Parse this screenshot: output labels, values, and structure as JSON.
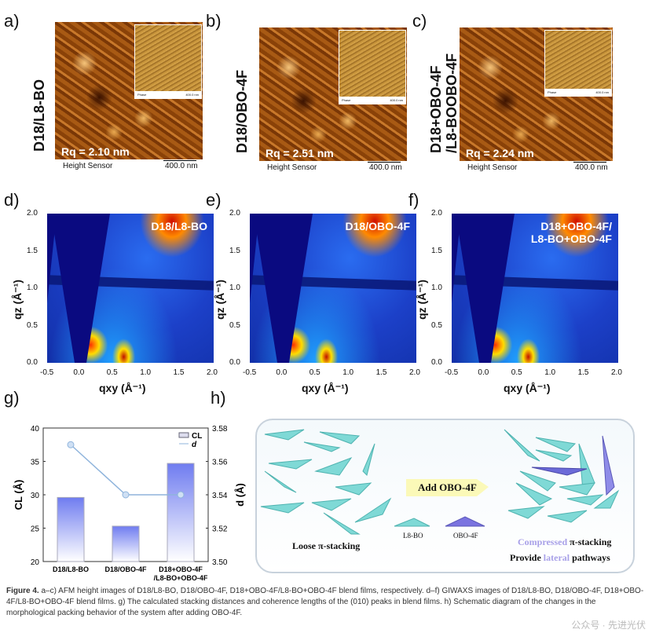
{
  "panels_afm": [
    {
      "letter": "a)",
      "sample": "D18/L8-BO",
      "rq": "Rq = 2.10 nm",
      "inset_label": "Phase",
      "inset_scale": "400.0 nm",
      "sensor": "Height Sensor",
      "scale": "400.0 nm"
    },
    {
      "letter": "b)",
      "sample": "D18/OBO-4F",
      "rq": "Rq = 2.51 nm",
      "inset_label": "Phase",
      "inset_scale": "400.0 nm",
      "sensor": "Height Sensor",
      "scale": "400.0 nm"
    },
    {
      "letter": "c)",
      "sample": "D18+OBO-4F",
      "sample2": "/L8-BOOBO-4F",
      "rq": "Rq = 2.24 nm",
      "inset_label": "Phase",
      "inset_scale": "400.0 nm",
      "sensor": "Height Sensor",
      "scale": "400.0 nm"
    }
  ],
  "panels_giwaxs": [
    {
      "letter": "d)",
      "sample": "D18/L8-BO"
    },
    {
      "letter": "e)",
      "sample": "D18/OBO-4F"
    },
    {
      "letter": "f)",
      "sample": "D18+OBO-4F/",
      "sample2": "L8-BO+OBO-4F"
    }
  ],
  "giwaxs_axes": {
    "xticks": [
      "-0.5",
      "0.0",
      "0.5",
      "1.0",
      "1.5",
      "2.0"
    ],
    "yticks": [
      "0.0",
      "0.5",
      "1.0",
      "1.5",
      "2.0"
    ],
    "xlabel": "qxy (Å⁻¹)",
    "ylabel": "qz (Å⁻¹)"
  },
  "chart_data": {
    "type": "bar",
    "letter": "g)",
    "categories": [
      "D18/L8-BO",
      "D18/OBO-4F",
      "D18+OBO-4F"
    ],
    "category_line2": [
      "",
      "",
      "/L8-BO+OBO-4F"
    ],
    "series": [
      {
        "name": "CL",
        "type": "bar",
        "axis": "left",
        "values": [
          29.6,
          25.3,
          34.7
        ]
      },
      {
        "name": "d",
        "type": "line",
        "axis": "right",
        "values": [
          3.57,
          3.54,
          3.54
        ]
      }
    ],
    "ylabel": "CL (Å)",
    "ylim": [
      20,
      40
    ],
    "yticks": [
      "20",
      "25",
      "30",
      "35",
      "40"
    ],
    "y2label": "d (Å)",
    "y2lim": [
      3.5,
      3.58
    ],
    "y2ticks": [
      "3.50",
      "3.52",
      "3.54",
      "3.56",
      "3.58"
    ],
    "legend": "top-right",
    "colors": {
      "bar": "#6f7cf0",
      "line": "#8fb4dc"
    }
  },
  "schematic": {
    "letter": "h)",
    "arrow": "Add OBO-4F",
    "left_caption": "Loose π-stacking",
    "legend_a": "L8-BO",
    "legend_b": "OBO-4F",
    "right_1a": "Compressed",
    "right_1b": " π-stacking",
    "right_2a": "Provide ",
    "right_2b": "lateral",
    "right_2c": " pathways"
  },
  "caption": {
    "bold": "Figure 4.",
    "text": " a–c) AFM height images of D18/L8-BO, D18/OBO-4F, D18+OBO-4F/L8-BO+OBO-4F blend films, respectively. d–f) GIWAXS images of D18/L8-BO, D18/OBO-4F, D18+OBO-4F/L8-BO+OBO-4F blend films. g) The calculated stacking distances and coherence lengths of the (010) peaks in blend films. h) Schematic diagram of the changes in the morphological packing behavior of the system after adding OBO-4F.",
    "watermark": "公众号 · 先进光伏"
  }
}
